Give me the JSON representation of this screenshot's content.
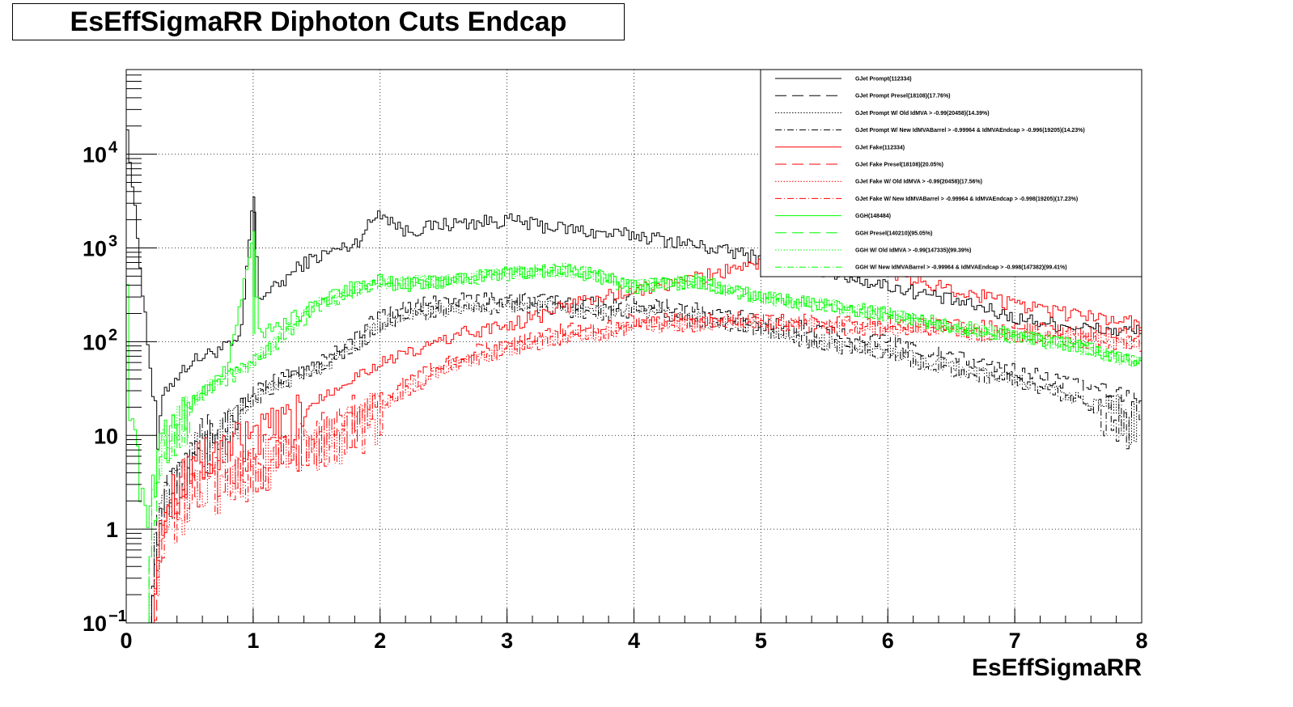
{
  "chart_data": {
    "type": "line",
    "title": "EsEffSigmaRR Diphoton Cuts Endcap",
    "xlabel": "EsEffSigmaRR",
    "ylabel": "",
    "xlim": [
      0,
      8
    ],
    "ylim": [
      0.1,
      80000
    ],
    "yscale": "log",
    "grid": true,
    "legend_position": "top-right",
    "x_ticks": [
      "0",
      "1",
      "2",
      "3",
      "4",
      "5",
      "6",
      "7",
      "8"
    ],
    "y_ticks": [
      {
        "label": "10",
        "exp": "−1",
        "value": 0.1
      },
      {
        "label": "1",
        "exp": "",
        "value": 1
      },
      {
        "label": "10",
        "exp": "",
        "value": 10
      },
      {
        "label": "10",
        "exp": "2",
        "value": 100
      },
      {
        "label": "10",
        "exp": "3",
        "value": 1000
      },
      {
        "label": "10",
        "exp": "4",
        "value": 10000
      }
    ],
    "series": [
      {
        "name": "GJet Prompt(112334)",
        "color": "#000000",
        "style": "solid",
        "x": [
          0.0,
          0.02,
          0.25,
          0.3,
          0.5,
          0.7,
          0.9,
          1.0,
          1.05,
          1.2,
          1.4,
          1.6,
          1.8,
          2.0,
          2.2,
          2.5,
          2.8,
          3.0,
          3.2,
          3.5,
          3.8,
          4.0,
          4.3,
          4.6,
          5.0,
          5.4,
          5.8,
          6.0,
          6.4,
          6.8,
          7.0,
          7.4,
          7.8,
          8.0
        ],
        "y": [
          40000,
          12000,
          8,
          30,
          60,
          80,
          100,
          3500,
          300,
          400,
          700,
          900,
          1100,
          2500,
          1500,
          1800,
          1900,
          2000,
          1800,
          1600,
          1400,
          1400,
          1200,
          1000,
          800,
          600,
          450,
          400,
          300,
          220,
          180,
          150,
          130,
          130
        ]
      },
      {
        "name": "GJet Prompt Presel(18108)(17.76%)",
        "color": "#000000",
        "style": "dashed",
        "x": [
          0.2,
          0.3,
          0.5,
          0.8,
          1.0,
          1.2,
          1.5,
          1.8,
          2.0,
          2.3,
          2.6,
          3.0,
          3.4,
          3.8,
          4.0,
          4.5,
          5.0,
          5.5,
          6.0,
          6.5,
          7.0,
          7.5,
          8.0
        ],
        "y": [
          0.5,
          3,
          8,
          15,
          30,
          40,
          60,
          110,
          200,
          250,
          280,
          300,
          270,
          260,
          280,
          220,
          170,
          130,
          100,
          70,
          50,
          35,
          25
        ]
      },
      {
        "name": "GJet Prompt W/ Old IdMVA > -0.99(20458)(14.39%)",
        "color": "#000000",
        "style": "dotted",
        "x": [
          0.2,
          0.3,
          0.5,
          0.8,
          1.0,
          1.2,
          1.5,
          1.8,
          2.0,
          2.3,
          2.6,
          3.0,
          3.4,
          3.8,
          4.0,
          4.5,
          5.0,
          5.5,
          6.0,
          6.5,
          7.0,
          7.5,
          8.0
        ],
        "y": [
          0.4,
          2,
          6,
          12,
          25,
          35,
          50,
          90,
          160,
          210,
          230,
          250,
          230,
          210,
          220,
          180,
          140,
          100,
          80,
          55,
          40,
          25,
          15
        ]
      },
      {
        "name": "GJet Prompt W/ New IdMVABarrel > -0.99964 & IdMVAEndcap > -0.996(19205)(14.23%)",
        "color": "#000000",
        "style": "dashdot",
        "x": [
          0.2,
          0.3,
          0.5,
          0.8,
          1.0,
          1.2,
          1.5,
          1.8,
          2.0,
          2.3,
          2.6,
          3.0,
          3.4,
          3.8,
          4.0,
          4.5,
          5.0,
          5.5,
          6.0,
          6.5,
          7.0,
          7.5,
          8.0
        ],
        "y": [
          0.4,
          2,
          6,
          12,
          24,
          34,
          48,
          85,
          150,
          200,
          220,
          240,
          220,
          200,
          210,
          170,
          130,
          95,
          75,
          50,
          38,
          24,
          14
        ]
      },
      {
        "name": "GJet Fake(112334)",
        "color": "#ff0000",
        "style": "solid",
        "x": [
          0.2,
          0.3,
          0.5,
          0.8,
          1.0,
          1.3,
          1.6,
          2.0,
          2.3,
          2.6,
          3.0,
          3.3,
          3.6,
          4.0,
          4.4,
          4.8,
          5.0,
          5.5,
          6.0,
          6.4,
          6.8,
          7.0,
          7.4,
          8.0
        ],
        "y": [
          0.1,
          2,
          5,
          8,
          10,
          15,
          30,
          60,
          80,
          120,
          150,
          200,
          280,
          350,
          450,
          600,
          700,
          650,
          550,
          400,
          300,
          250,
          200,
          160
        ]
      },
      {
        "name": "GJet Fake Presel(18108)(20.05%)",
        "color": "#ff0000",
        "style": "dashed",
        "x": [
          0.2,
          0.3,
          0.5,
          0.8,
          1.0,
          1.3,
          1.6,
          2.0,
          2.3,
          2.6,
          3.0,
          3.4,
          3.8,
          4.0,
          4.5,
          5.0,
          5.5,
          6.0,
          6.5,
          7.0,
          7.5,
          8.0
        ],
        "y": [
          0.1,
          1,
          3,
          5,
          6,
          8,
          12,
          25,
          45,
          70,
          100,
          130,
          150,
          170,
          180,
          180,
          170,
          160,
          150,
          140,
          130,
          120
        ]
      },
      {
        "name": "GJet Fake W/ Old IdMVA > -0.99(20458)(17.56%)",
        "color": "#ff0000",
        "style": "dotted",
        "x": [
          0.2,
          0.3,
          0.5,
          0.8,
          1.0,
          1.3,
          1.6,
          2.0,
          2.3,
          2.6,
          3.0,
          3.4,
          3.8,
          4.0,
          4.5,
          5.0,
          5.5,
          6.0,
          6.5,
          7.0,
          7.5,
          8.0
        ],
        "y": [
          0.1,
          1,
          2.5,
          4,
          5,
          7,
          10,
          20,
          38,
          60,
          85,
          110,
          130,
          150,
          160,
          160,
          150,
          140,
          130,
          120,
          110,
          100
        ]
      },
      {
        "name": "GJet Fake W/ New IdMVABarrel > -0.99964 & IdMVAEndcap > -0.998(19205)(17.23%)",
        "color": "#ff0000",
        "style": "dashdot",
        "x": [
          0.2,
          0.3,
          0.5,
          0.8,
          1.0,
          1.3,
          1.6,
          2.0,
          2.3,
          2.6,
          3.0,
          3.4,
          3.8,
          4.0,
          4.5,
          5.0,
          5.5,
          6.0,
          6.5,
          7.0,
          7.5,
          8.0
        ],
        "y": [
          0.1,
          1,
          2.4,
          4,
          5,
          7,
          10,
          19,
          36,
          58,
          82,
          105,
          125,
          145,
          155,
          155,
          145,
          135,
          125,
          115,
          105,
          95
        ]
      },
      {
        "name": "GGH(148484)",
        "color": "#00ff00",
        "style": "solid",
        "x": [
          0.0,
          0.02,
          0.18,
          0.25,
          0.4,
          0.6,
          0.8,
          1.0,
          1.05,
          1.2,
          1.5,
          1.8,
          2.0,
          2.2,
          2.5,
          3.0,
          3.5,
          4.0,
          4.5,
          5.0,
          5.5,
          6.0,
          6.5,
          7.0,
          7.5,
          8.0
        ],
        "y": [
          12000,
          20,
          1,
          10,
          15,
          30,
          50,
          1500,
          120,
          150,
          250,
          400,
          450,
          400,
          450,
          550,
          600,
          400,
          450,
          300,
          250,
          200,
          150,
          120,
          90,
          60
        ]
      },
      {
        "name": "GGH Presel(140210)(95.05%)",
        "color": "#00ff00",
        "style": "dashed",
        "x": [
          0.18,
          0.3,
          0.6,
          1.0,
          1.5,
          2.0,
          2.5,
          3.0,
          3.5,
          4.0,
          4.5,
          5.0,
          5.5,
          6.0,
          6.5,
          7.0,
          7.5,
          8.0
        ],
        "y": [
          1,
          10,
          28,
          60,
          230,
          420,
          440,
          530,
          580,
          390,
          430,
          290,
          240,
          190,
          145,
          115,
          85,
          58
        ]
      },
      {
        "name": "GGH W/ Old IdMVA > -0.99(147335)(99.39%)",
        "color": "#00ff00",
        "style": "dotted",
        "x": [
          0.18,
          0.3,
          0.6,
          1.0,
          1.5,
          2.0,
          2.5,
          3.0,
          3.5,
          4.0,
          4.5,
          5.0,
          5.5,
          6.0,
          6.5,
          7.0,
          7.5,
          8.0
        ],
        "y": [
          1,
          10,
          30,
          62,
          245,
          440,
          445,
          545,
          595,
          398,
          445,
          298,
          248,
          198,
          148,
          118,
          88,
          59
        ]
      },
      {
        "name": "GGH W/ New IdMVABarrel > -0.99964 & IdMVAEndcap > -0.998(147382)(99.41%)",
        "color": "#00ff00",
        "style": "dashdot",
        "x": [
          0.18,
          0.3,
          0.6,
          1.0,
          1.5,
          2.0,
          2.5,
          3.0,
          3.5,
          4.0,
          4.5,
          5.0,
          5.5,
          6.0,
          6.5,
          7.0,
          7.5,
          8.0
        ],
        "y": [
          1,
          10,
          30,
          62,
          246,
          441,
          446,
          546,
          596,
          399,
          446,
          299,
          249,
          199,
          149,
          119,
          89,
          59
        ]
      }
    ]
  }
}
